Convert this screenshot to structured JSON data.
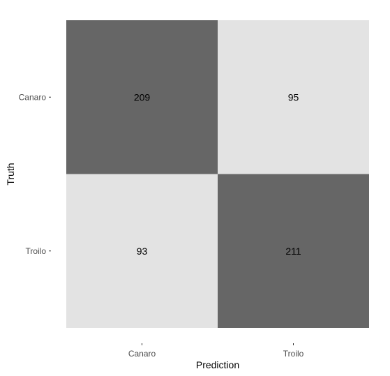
{
  "chart_data": {
    "type": "heatmap",
    "x_categories": [
      "Canaro",
      "Troilo"
    ],
    "y_categories": [
      "Canaro",
      "Troilo"
    ],
    "xlabel": "Prediction",
    "ylabel": "Truth",
    "cells": [
      {
        "truth": "Canaro",
        "prediction": "Canaro",
        "value": 209
      },
      {
        "truth": "Canaro",
        "prediction": "Troilo",
        "value": 95
      },
      {
        "truth": "Troilo",
        "prediction": "Canaro",
        "value": 93
      },
      {
        "truth": "Troilo",
        "prediction": "Troilo",
        "value": 211
      }
    ],
    "colors": {
      "high": "#666666",
      "low": "#e3e3e3",
      "text": "#000000",
      "tick_text": "#4d4d4d"
    },
    "grid": false,
    "legend": "none"
  }
}
